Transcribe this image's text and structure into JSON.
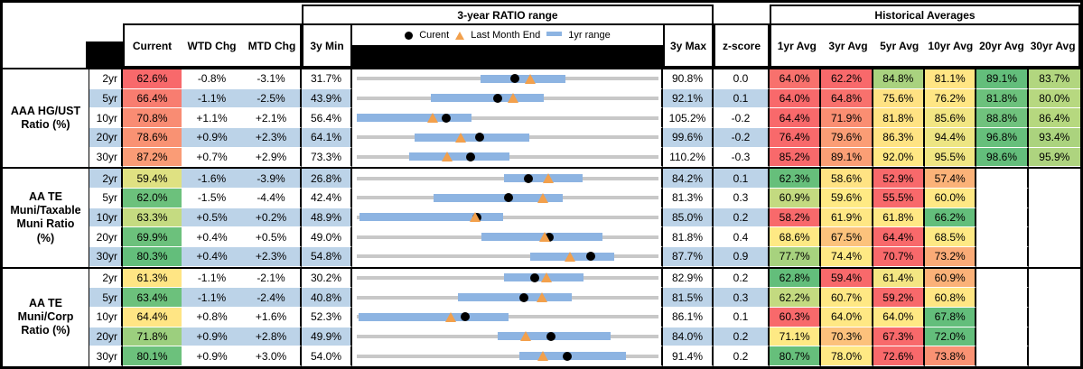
{
  "header": {
    "ratio_range_title": "3-year RATIO range",
    "historical_title": "Historical Averages",
    "col_current": "Current",
    "col_wtd": "WTD Chg",
    "col_mtd": "MTD Chg",
    "col_3y_min": "3y Min",
    "col_3y_max": "3y Max",
    "col_zscore": "z-score",
    "avg_cols": [
      "1yr Avg",
      "3yr Avg",
      "5yr Avg",
      "10yr Avg",
      "20yr Avg",
      "30yr Avg"
    ],
    "legend": {
      "current": "Curent",
      "last_month": "Last Month End",
      "range": "1yr range"
    }
  },
  "colors": {
    "band_blue": "#BCD3E8",
    "bar_blue": "#8DB4E2",
    "track_gray": "#C8C8C8",
    "marker_orange": "#F2A04C",
    "dot_black": "#000000"
  },
  "groups": [
    {
      "label_lines": [
        "AAA HG/UST",
        "Ratio (%)"
      ],
      "rows": [
        {
          "tenor": "2yr",
          "band": false,
          "current": "62.6%",
          "current_bg": "#F8696B",
          "wtd": "-0.8%",
          "mtd": "-3.1%",
          "min": "31.7%",
          "max": "90.8%",
          "z": "0.0",
          "cur_v": 62.6,
          "mtd_v": -3.1,
          "min_v": 31.7,
          "max_v": 90.8,
          "bar": [
            0.411,
            0.693
          ],
          "avgs": [
            {
              "v": "64.0%",
              "bg": "#F8716D"
            },
            {
              "v": "62.2%",
              "bg": "#F8696B"
            },
            {
              "v": "84.8%",
              "bg": "#A9D27F"
            },
            {
              "v": "81.1%",
              "bg": "#FFE584"
            },
            {
              "v": "89.1%",
              "bg": "#63BE7B"
            },
            {
              "v": "83.7%",
              "bg": "#B2D67F"
            }
          ]
        },
        {
          "tenor": "5yr",
          "band": true,
          "current": "66.4%",
          "current_bg": "#F87D70",
          "wtd": "-1.1%",
          "mtd": "-2.5%",
          "min": "43.9%",
          "max": "92.1%",
          "z": "0.1",
          "cur_v": 66.4,
          "mtd_v": -2.5,
          "min_v": 43.9,
          "max_v": 92.1,
          "bar": [
            0.247,
            0.619
          ],
          "avgs": [
            {
              "v": "64.0%",
              "bg": "#F8696B"
            },
            {
              "v": "64.8%",
              "bg": "#F8716D"
            },
            {
              "v": "75.6%",
              "bg": "#FFE283"
            },
            {
              "v": "76.2%",
              "bg": "#FFE684"
            },
            {
              "v": "81.8%",
              "bg": "#6CC17C"
            },
            {
              "v": "80.0%",
              "bg": "#B7D880"
            }
          ]
        },
        {
          "tenor": "10yr",
          "band": false,
          "current": "70.8%",
          "current_bg": "#F98C73",
          "wtd": "+1.1%",
          "mtd": "+2.1%",
          "min": "56.4%",
          "max": "105.2%",
          "z": "-0.2",
          "cur_v": 70.8,
          "mtd_v": 2.1,
          "min_v": 56.4,
          "max_v": 105.2,
          "bar": [
            0.0,
            0.381
          ],
          "avgs": [
            {
              "v": "64.4%",
              "bg": "#F8696B"
            },
            {
              "v": "71.9%",
              "bg": "#FA8E72"
            },
            {
              "v": "81.8%",
              "bg": "#FFE383"
            },
            {
              "v": "85.6%",
              "bg": "#F2E683"
            },
            {
              "v": "88.8%",
              "bg": "#70C27D"
            },
            {
              "v": "86.4%",
              "bg": "#B6D87F"
            }
          ]
        },
        {
          "tenor": "20yr",
          "band": true,
          "current": "78.6%",
          "current_bg": "#F99273",
          "wtd": "+0.9%",
          "mtd": "+2.3%",
          "min": "64.1%",
          "max": "99.6%",
          "z": "-0.2",
          "cur_v": 78.6,
          "mtd_v": 2.3,
          "min_v": 64.1,
          "max_v": 99.6,
          "bar": [
            0.193,
            0.571
          ],
          "avgs": [
            {
              "v": "76.4%",
              "bg": "#F8696B"
            },
            {
              "v": "79.6%",
              "bg": "#FB9D75"
            },
            {
              "v": "86.3%",
              "bg": "#FFE383"
            },
            {
              "v": "94.4%",
              "bg": "#EDE583"
            },
            {
              "v": "96.8%",
              "bg": "#66BF7B"
            },
            {
              "v": "93.4%",
              "bg": "#ABD37E"
            }
          ]
        },
        {
          "tenor": "30yr",
          "band": false,
          "current": "87.2%",
          "current_bg": "#FA9C76",
          "wtd": "+0.7%",
          "mtd": "+2.9%",
          "min": "73.3%",
          "max": "110.2%",
          "z": "-0.3",
          "cur_v": 87.2,
          "mtd_v": 2.9,
          "min_v": 73.3,
          "max_v": 110.2,
          "bar": [
            0.173,
            0.506
          ],
          "avgs": [
            {
              "v": "85.2%",
              "bg": "#F8696B"
            },
            {
              "v": "89.1%",
              "bg": "#FB9F75"
            },
            {
              "v": "92.0%",
              "bg": "#FFE884"
            },
            {
              "v": "95.5%",
              "bg": "#F0E683"
            },
            {
              "v": "98.6%",
              "bg": "#63BE7B"
            },
            {
              "v": "95.9%",
              "bg": "#AED47F"
            }
          ]
        }
      ]
    },
    {
      "label_lines": [
        "AA TE",
        "Muni/Taxable",
        "Muni Ratio",
        "(%)"
      ],
      "rows": [
        {
          "tenor": "2yr",
          "band": true,
          "current": "59.4%",
          "current_bg": "#DFE182",
          "wtd": "-1.6%",
          "mtd": "-3.9%",
          "min": "26.8%",
          "max": "84.2%",
          "z": "0.1",
          "cur_v": 59.4,
          "mtd_v": -3.9,
          "min_v": 26.8,
          "max_v": 84.2,
          "bar": [
            0.488,
            0.75
          ],
          "avgs": [
            {
              "v": "62.3%",
              "bg": "#66BF7B"
            },
            {
              "v": "58.6%",
              "bg": "#FFE383"
            },
            {
              "v": "52.9%",
              "bg": "#F8696B"
            },
            {
              "v": "57.4%",
              "bg": "#FBB278"
            },
            {
              "v": "",
              "bg": ""
            },
            {
              "v": "",
              "bg": ""
            }
          ]
        },
        {
          "tenor": "5yr",
          "band": false,
          "current": "62.0%",
          "current_bg": "#6CC17C",
          "wtd": "-1.5%",
          "mtd": "-4.4%",
          "min": "42.4%",
          "max": "81.3%",
          "z": "0.3",
          "cur_v": 62.0,
          "mtd_v": -4.4,
          "min_v": 42.4,
          "max_v": 81.3,
          "bar": [
            0.253,
            0.684
          ],
          "avgs": [
            {
              "v": "60.9%",
              "bg": "#C3DA80"
            },
            {
              "v": "59.6%",
              "bg": "#FFEA84"
            },
            {
              "v": "55.5%",
              "bg": "#F8696B"
            },
            {
              "v": "60.0%",
              "bg": "#FFE884"
            },
            {
              "v": "",
              "bg": ""
            },
            {
              "v": "",
              "bg": ""
            }
          ]
        },
        {
          "tenor": "10yr",
          "band": true,
          "current": "63.3%",
          "current_bg": "#C5DB81",
          "wtd": "+0.5%",
          "mtd": "+0.2%",
          "min": "48.9%",
          "max": "85.0%",
          "z": "0.2",
          "cur_v": 63.3,
          "mtd_v": 0.2,
          "min_v": 48.9,
          "max_v": 85.0,
          "bar": [
            0.009,
            0.485
          ],
          "avgs": [
            {
              "v": "58.2%",
              "bg": "#F8696B"
            },
            {
              "v": "61.9%",
              "bg": "#FFE784"
            },
            {
              "v": "61.8%",
              "bg": "#FFE884"
            },
            {
              "v": "66.2%",
              "bg": "#63BE7B"
            },
            {
              "v": "",
              "bg": ""
            },
            {
              "v": "",
              "bg": ""
            }
          ]
        },
        {
          "tenor": "20yr",
          "band": false,
          "current": "69.9%",
          "current_bg": "#6CC17C",
          "wtd": "+0.4%",
          "mtd": "+0.5%",
          "min": "49.0%",
          "max": "81.8%",
          "z": "0.4",
          "cur_v": 69.9,
          "mtd_v": 0.5,
          "min_v": 49.0,
          "max_v": 81.8,
          "bar": [
            0.414,
            0.813
          ],
          "avgs": [
            {
              "v": "68.6%",
              "bg": "#FEE984"
            },
            {
              "v": "67.5%",
              "bg": "#FCC27C"
            },
            {
              "v": "64.4%",
              "bg": "#F8696B"
            },
            {
              "v": "68.5%",
              "bg": "#FEE984"
            },
            {
              "v": "",
              "bg": ""
            },
            {
              "v": "",
              "bg": ""
            }
          ]
        },
        {
          "tenor": "30yr",
          "band": true,
          "current": "80.3%",
          "current_bg": "#63BE7B",
          "wtd": "+0.4%",
          "mtd": "+2.3%",
          "min": "54.8%",
          "max": "87.7%",
          "z": "0.9",
          "cur_v": 80.3,
          "mtd_v": 2.3,
          "min_v": 54.8,
          "max_v": 87.7,
          "bar": [
            0.574,
            0.854
          ],
          "avgs": [
            {
              "v": "77.7%",
              "bg": "#A7D27E"
            },
            {
              "v": "74.4%",
              "bg": "#FFE984"
            },
            {
              "v": "70.7%",
              "bg": "#F8696B"
            },
            {
              "v": "73.2%",
              "bg": "#FBAB77"
            },
            {
              "v": "",
              "bg": ""
            },
            {
              "v": "",
              "bg": ""
            }
          ]
        }
      ]
    },
    {
      "label_lines": [
        "AA TE",
        "Muni/Corp",
        "Ratio (%)"
      ],
      "rows": [
        {
          "tenor": "2yr",
          "band": false,
          "current": "61.3%",
          "current_bg": "#FFE584",
          "wtd": "-1.1%",
          "mtd": "-2.1%",
          "min": "30.2%",
          "max": "82.9%",
          "z": "0.2",
          "cur_v": 61.3,
          "mtd_v": -2.1,
          "min_v": 30.2,
          "max_v": 82.9,
          "bar": [
            0.488,
            0.753
          ],
          "avgs": [
            {
              "v": "62.8%",
              "bg": "#63BE7B"
            },
            {
              "v": "59.4%",
              "bg": "#F8696B"
            },
            {
              "v": "61.4%",
              "bg": "#F4E683"
            },
            {
              "v": "60.9%",
              "bg": "#FBB178"
            },
            {
              "v": "",
              "bg": ""
            },
            {
              "v": "",
              "bg": ""
            }
          ]
        },
        {
          "tenor": "5yr",
          "band": true,
          "current": "63.4%",
          "current_bg": "#6CC17C",
          "wtd": "-1.1%",
          "mtd": "-2.4%",
          "min": "40.8%",
          "max": "81.5%",
          "z": "0.3",
          "cur_v": 63.4,
          "mtd_v": -2.4,
          "min_v": 40.8,
          "max_v": 81.5,
          "bar": [
            0.336,
            0.714
          ],
          "avgs": [
            {
              "v": "62.2%",
              "bg": "#C3DA80"
            },
            {
              "v": "60.7%",
              "bg": "#FFE884"
            },
            {
              "v": "59.2%",
              "bg": "#F8696B"
            },
            {
              "v": "60.8%",
              "bg": "#FFE683"
            },
            {
              "v": "",
              "bg": ""
            },
            {
              "v": "",
              "bg": ""
            }
          ]
        },
        {
          "tenor": "10yr",
          "band": false,
          "current": "64.4%",
          "current_bg": "#FFE584",
          "wtd": "+0.8%",
          "mtd": "+1.6%",
          "min": "52.3%",
          "max": "86.1%",
          "z": "0.1",
          "cur_v": 64.4,
          "mtd_v": 1.6,
          "min_v": 52.3,
          "max_v": 86.1,
          "bar": [
            0.006,
            0.503
          ],
          "avgs": [
            {
              "v": "60.3%",
              "bg": "#F8696B"
            },
            {
              "v": "64.0%",
              "bg": "#FFE884"
            },
            {
              "v": "64.0%",
              "bg": "#FFE884"
            },
            {
              "v": "67.8%",
              "bg": "#63BE7B"
            },
            {
              "v": "",
              "bg": ""
            },
            {
              "v": "",
              "bg": ""
            }
          ]
        },
        {
          "tenor": "20yr",
          "band": true,
          "current": "71.8%",
          "current_bg": "#9CCF7E",
          "wtd": "+0.9%",
          "mtd": "+2.8%",
          "min": "49.9%",
          "max": "84.0%",
          "z": "0.2",
          "cur_v": 71.8,
          "mtd_v": 2.8,
          "min_v": 49.9,
          "max_v": 84.0,
          "bar": [
            0.467,
            0.842
          ],
          "avgs": [
            {
              "v": "71.1%",
              "bg": "#FEE984"
            },
            {
              "v": "70.3%",
              "bg": "#FCC17C"
            },
            {
              "v": "67.3%",
              "bg": "#F8696B"
            },
            {
              "v": "72.0%",
              "bg": "#63BE7B"
            },
            {
              "v": "",
              "bg": ""
            },
            {
              "v": "",
              "bg": ""
            }
          ]
        },
        {
          "tenor": "30yr",
          "band": false,
          "current": "80.1%",
          "current_bg": "#6CC17C",
          "wtd": "+0.9%",
          "mtd": "+3.0%",
          "min": "54.0%",
          "max": "91.4%",
          "z": "0.2",
          "cur_v": 80.1,
          "mtd_v": 3.0,
          "min_v": 54.0,
          "max_v": 91.4,
          "bar": [
            0.539,
            0.893
          ],
          "avgs": [
            {
              "v": "80.7%",
              "bg": "#66BF7B"
            },
            {
              "v": "78.0%",
              "bg": "#FFE984"
            },
            {
              "v": "72.6%",
              "bg": "#F8696B"
            },
            {
              "v": "73.8%",
              "bg": "#FA9273"
            },
            {
              "v": "",
              "bg": ""
            },
            {
              "v": "",
              "bg": ""
            }
          ]
        }
      ]
    }
  ]
}
